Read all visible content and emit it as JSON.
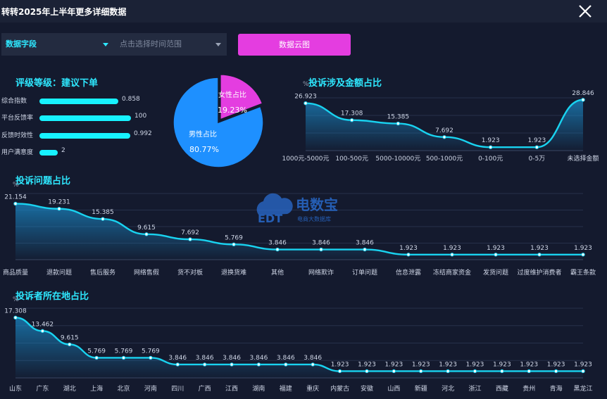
{
  "window": {
    "title": "转转2025年上半年更多详细数据"
  },
  "filters": {
    "field_select": "数据字段",
    "time_select": "点击选择时间范围",
    "cloud_button": "数据云图"
  },
  "colors": {
    "cyan": "#17f2ff",
    "magenta": "#e43de0",
    "blue": "#1e90ff",
    "bg": "#141a2e"
  },
  "rating": {
    "title": "评级等级：建议下单",
    "items": [
      {
        "label": "综合指数",
        "value": "0.858",
        "level": 0.858
      },
      {
        "label": "平台反馈率",
        "value": "100",
        "level": 1.0
      },
      {
        "label": "反馈时效性",
        "value": "0.992",
        "level": 0.992
      },
      {
        "label": "用户满意度",
        "value": "2",
        "level": 0.2
      }
    ]
  },
  "watermark": {
    "brand": "电数宝",
    "sub": "电商大数据库",
    "logo_text": "EDT"
  },
  "chart_data": [
    {
      "type": "pie",
      "categories": [
        "女性占比",
        "男性占比"
      ],
      "values": [
        19.23,
        80.77
      ],
      "value_labels": [
        "19.23%",
        "80.77%"
      ],
      "colors": [
        "#e43de0",
        "#1e90ff"
      ]
    },
    {
      "type": "area",
      "title": "投诉涉及金额占比",
      "ylabel": "%",
      "categories": [
        "1000元-5000元",
        "100-500元",
        "5000-10000元",
        "500-1000元",
        "0-100元",
        "0-5万",
        "未选择金额"
      ],
      "values": [
        26.923,
        17.308,
        15.385,
        7.692,
        1.923,
        1.923,
        28.846
      ],
      "value_labels": [
        "26.923",
        "17.308",
        "15.385",
        "7.692",
        "1.923",
        "1.923",
        "28.846"
      ],
      "ylim": [
        0,
        30
      ]
    },
    {
      "type": "area",
      "title": "投诉问题占比",
      "ylabel": "%",
      "categories": [
        "商品质量",
        "退款问题",
        "售后服务",
        "网络售假",
        "货不对板",
        "退换货难",
        "其他",
        "网络欺诈",
        "订单问题",
        "信息泄露",
        "冻结商家资金",
        "发货问题",
        "过度维护消费者",
        "霸王条款"
      ],
      "values": [
        21.154,
        19.231,
        15.385,
        9.615,
        7.692,
        5.769,
        3.846,
        3.846,
        3.846,
        1.923,
        1.923,
        1.923,
        1.923,
        1.923
      ],
      "value_labels": [
        "21.154",
        "19.231",
        "15.385",
        "9.615",
        "7.692",
        "5.769",
        "3.846",
        "3.846",
        "3.846",
        "1.923",
        "1.923",
        "1.923",
        "1.923",
        "1.923"
      ],
      "ylim": [
        0,
        25
      ]
    },
    {
      "type": "area",
      "title": "投诉者所在地占比",
      "ylabel": "%",
      "categories": [
        "山东",
        "广东",
        "湖北",
        "上海",
        "北京",
        "河南",
        "四川",
        "广西",
        "江西",
        "湖南",
        "福建",
        "重庆",
        "内蒙古",
        "安徽",
        "山西",
        "新疆",
        "河北",
        "浙江",
        "西藏",
        "贵州",
        "青海",
        "黑龙江"
      ],
      "values": [
        17.308,
        13.462,
        9.615,
        5.769,
        5.769,
        5.769,
        3.846,
        3.846,
        3.846,
        3.846,
        3.846,
        3.846,
        1.923,
        1.923,
        1.923,
        1.923,
        1.923,
        1.923,
        1.923,
        1.923,
        1.923,
        1.923
      ],
      "value_labels": [
        "17.308",
        "13.462",
        "9.615",
        "5.769",
        "5.769",
        "5.769",
        "3.846",
        "3.846",
        "3.846",
        "3.846",
        "3.846",
        "3.846",
        "1.923",
        "1.923",
        "1.923",
        "1.923",
        "1.923",
        "1.923",
        "1.923",
        "1.923",
        "1.923",
        "1.923"
      ],
      "ylim": [
        0,
        20
      ]
    }
  ]
}
